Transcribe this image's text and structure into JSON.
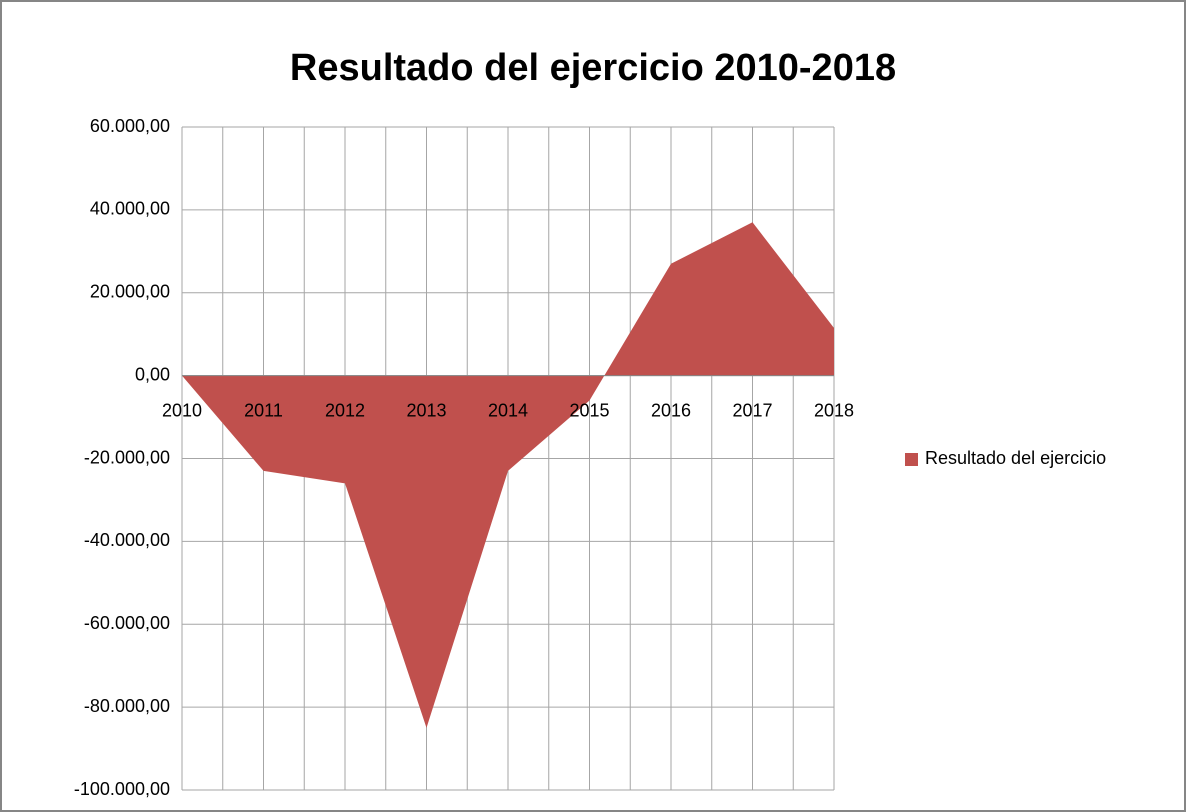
{
  "chart_data": {
    "type": "area",
    "title": "Resultado del ejercicio 2010-2018",
    "categories": [
      "2010",
      "2011",
      "2012",
      "2013",
      "2014",
      "2015",
      "2016",
      "2017",
      "2018"
    ],
    "series": [
      {
        "name": "Resultado del ejercicio",
        "color": "#c0504d",
        "values": [
          0,
          -23000,
          -26000,
          -85000,
          -23000,
          -6000,
          27000,
          37000,
          11500
        ]
      }
    ],
    "ylim": [
      -100000,
      60000
    ],
    "yticks": [
      {
        "value": -100000,
        "label": "-100.000,00"
      },
      {
        "value": -80000,
        "label": "-80.000,00"
      },
      {
        "value": -60000,
        "label": "-60.000,00"
      },
      {
        "value": -40000,
        "label": "-40.000,00"
      },
      {
        "value": -20000,
        "label": "-20.000,00"
      },
      {
        "value": 0,
        "label": "0,00"
      },
      {
        "value": 20000,
        "label": "20.000,00"
      },
      {
        "value": 40000,
        "label": "40.000,00"
      },
      {
        "value": 60000,
        "label": "60.000,00"
      }
    ],
    "grid": true,
    "legend": "right"
  }
}
